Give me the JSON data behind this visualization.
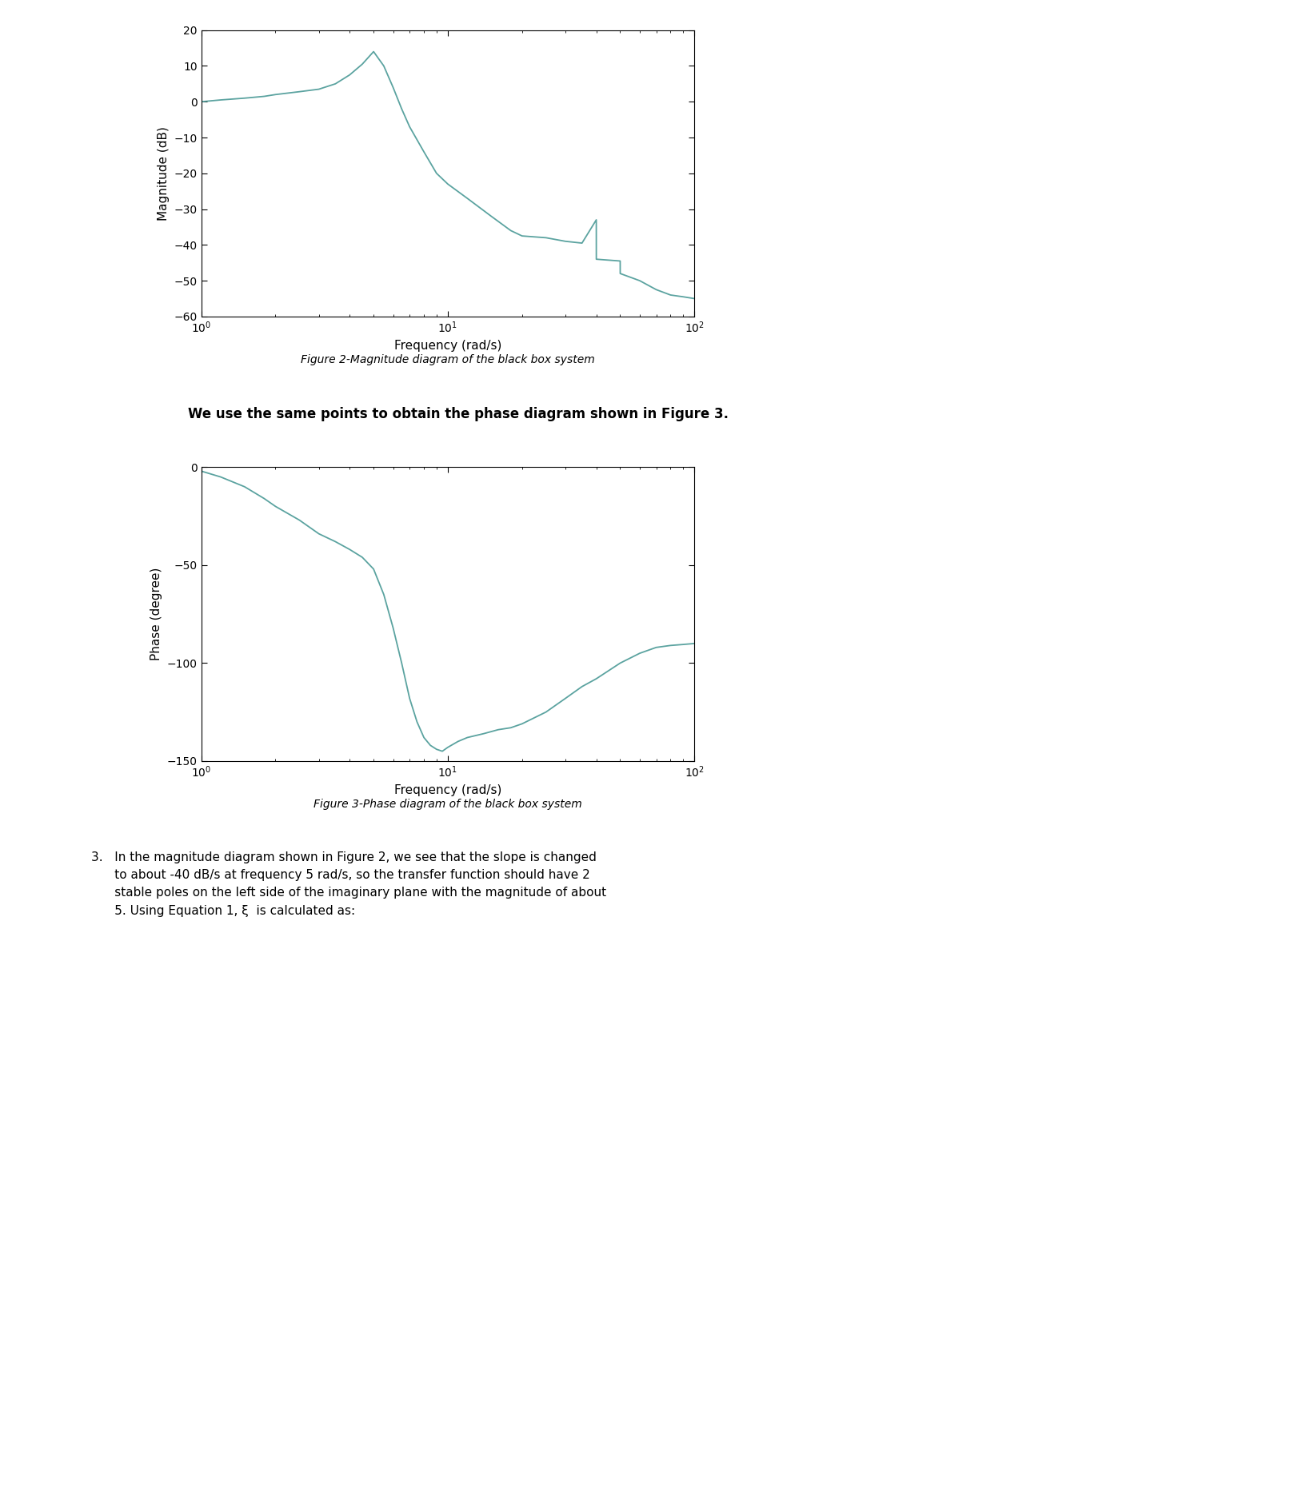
{
  "fig_width": 16.23,
  "fig_height": 18.85,
  "bg_color": "#ffffff",
  "line_color": "#5ba3a0",
  "line_width": 1.3,
  "mag_ylabel": "Magnitude (dB)",
  "mag_xlabel": "Frequency (rad/s)",
  "mag_ylim": [
    -60,
    20
  ],
  "mag_yticks": [
    -60,
    -50,
    -40,
    -30,
    -20,
    -10,
    0,
    10,
    20
  ],
  "mag_xlim": [
    1.0,
    100.0
  ],
  "mag_caption": "Figure 2-Magnitude diagram of the black box system",
  "phase_ylabel": "Phase (degree)",
  "phase_xlabel": "Frequency (rad/s)",
  "phase_ylim": [
    -150,
    0
  ],
  "phase_yticks": [
    -150,
    -100,
    -50,
    0
  ],
  "phase_xlim": [
    1.0,
    100.0
  ],
  "phase_caption": "Figure 3-Phase diagram of the black box system",
  "text_between": "We use the same points to obtain the phase diagram shown in Figure 3.",
  "text_below_line1": "3.   In the magnitude diagram shown in Figure 2, we see that the slope is changed",
  "text_below_line2": "      to about -40 dB/s at frequency 5 rad/s, so the transfer function should have 2",
  "text_below_line3": "      stable poles on the left side of the imaginary plane with the magnitude of about",
  "text_below_line4": "      5. Using Equation 1, ξ  is calculated as:",
  "mag_freq": [
    1.0,
    1.2,
    1.5,
    1.8,
    2.0,
    2.5,
    3.0,
    3.5,
    4.0,
    4.5,
    5.0,
    5.5,
    6.0,
    6.5,
    7.0,
    8.0,
    9.0,
    10.0,
    12.0,
    15.0,
    18.0,
    20.0,
    25.0,
    30.0,
    35.0,
    40.0,
    40.01,
    50.0,
    50.01,
    60.0,
    70.0,
    80.0,
    90.0,
    100.0
  ],
  "mag_vals": [
    0.0,
    0.5,
    1.0,
    1.5,
    2.0,
    2.8,
    3.5,
    5.0,
    7.5,
    10.5,
    14.0,
    10.0,
    4.0,
    -2.0,
    -7.0,
    -14.0,
    -20.0,
    -23.0,
    -27.0,
    -32.0,
    -36.0,
    -37.5,
    -38.0,
    -39.0,
    -39.5,
    -33.0,
    -44.0,
    -44.5,
    -48.0,
    -50.0,
    -52.5,
    -54.0,
    -54.5,
    -55.0
  ],
  "phase_freq": [
    1.0,
    1.2,
    1.5,
    1.8,
    2.0,
    2.5,
    3.0,
    3.5,
    4.0,
    4.5,
    5.0,
    5.5,
    6.0,
    6.5,
    7.0,
    7.5,
    8.0,
    8.5,
    9.0,
    9.5,
    10.0,
    11.0,
    12.0,
    14.0,
    16.0,
    18.0,
    20.0,
    25.0,
    30.0,
    35.0,
    40.0,
    50.0,
    60.0,
    70.0,
    80.0,
    90.0,
    100.0
  ],
  "phase_vals": [
    -2.0,
    -5.0,
    -10.0,
    -16.0,
    -20.0,
    -27.0,
    -34.0,
    -38.0,
    -42.0,
    -46.0,
    -52.0,
    -65.0,
    -82.0,
    -100.0,
    -118.0,
    -130.0,
    -138.0,
    -142.0,
    -144.0,
    -145.0,
    -143.0,
    -140.0,
    -138.0,
    -136.0,
    -134.0,
    -133.0,
    -131.0,
    -125.0,
    -118.0,
    -112.0,
    -108.0,
    -100.0,
    -95.0,
    -92.0,
    -91.0,
    -90.5,
    -90.0
  ]
}
